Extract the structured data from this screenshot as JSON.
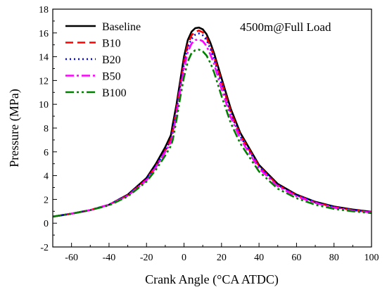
{
  "chart_data": {
    "type": "line",
    "title": "",
    "annotation": "4500m@Full Load",
    "xlabel": "Crank Angle (°CA ATDC)",
    "ylabel": "Pressure (MPa)",
    "xlim": [
      -70,
      100
    ],
    "ylim": [
      -2,
      18
    ],
    "xticks": [
      -60,
      -40,
      -20,
      0,
      20,
      40,
      60,
      80,
      100
    ],
    "yticks": [
      -2,
      0,
      2,
      4,
      6,
      8,
      10,
      12,
      14,
      16,
      18
    ],
    "grid": false,
    "legend_position": "top-left",
    "x": [
      -70,
      -60,
      -50,
      -40,
      -30,
      -20,
      -15,
      -10,
      -7,
      -6,
      -4,
      -2,
      0,
      2,
      4,
      6,
      8,
      10,
      12,
      14,
      16,
      20,
      25,
      30,
      40,
      50,
      60,
      70,
      80,
      90,
      100
    ],
    "series": [
      {
        "name": "Baseline",
        "color": "#000000",
        "dash": "",
        "values": [
          0.55,
          0.8,
          1.1,
          1.55,
          2.4,
          3.8,
          5.0,
          6.4,
          7.4,
          8.3,
          10.0,
          12.0,
          14.0,
          15.4,
          16.1,
          16.4,
          16.45,
          16.3,
          15.9,
          15.2,
          14.3,
          12.2,
          9.6,
          7.6,
          4.9,
          3.3,
          2.4,
          1.8,
          1.4,
          1.15,
          0.95
        ]
      },
      {
        "name": "B10",
        "color": "#ff0000",
        "dash": "11,6",
        "values": [
          0.55,
          0.8,
          1.1,
          1.55,
          2.35,
          3.7,
          4.8,
          6.1,
          7.1,
          7.8,
          9.6,
          11.6,
          13.6,
          15.0,
          15.8,
          16.1,
          16.2,
          16.05,
          15.6,
          14.9,
          14.0,
          11.9,
          9.3,
          7.4,
          4.8,
          3.2,
          2.35,
          1.75,
          1.35,
          1.1,
          0.92
        ]
      },
      {
        "name": "B20",
        "color": "#0000ff",
        "dash": "2,4",
        "values": [
          0.55,
          0.8,
          1.1,
          1.55,
          2.35,
          3.7,
          4.8,
          6.1,
          7.0,
          7.7,
          9.5,
          11.5,
          13.4,
          14.8,
          15.5,
          15.85,
          15.95,
          15.8,
          15.4,
          14.7,
          13.8,
          11.7,
          9.2,
          7.3,
          4.75,
          3.2,
          2.35,
          1.75,
          1.35,
          1.1,
          0.92
        ]
      },
      {
        "name": "B50",
        "color": "#ff00ff",
        "dash": "12,4,3,4",
        "values": [
          0.55,
          0.8,
          1.1,
          1.55,
          2.3,
          3.6,
          4.7,
          6.0,
          6.8,
          7.4,
          9.2,
          11.2,
          13.0,
          14.4,
          15.1,
          15.4,
          15.45,
          15.3,
          14.9,
          14.2,
          13.4,
          11.3,
          8.9,
          7.1,
          4.6,
          3.1,
          2.25,
          1.7,
          1.3,
          1.05,
          0.9
        ]
      },
      {
        "name": "B100",
        "color": "#008000",
        "dash": "12,4,3,4,3,4",
        "values": [
          0.55,
          0.8,
          1.1,
          1.5,
          2.25,
          3.5,
          4.5,
          5.7,
          6.5,
          7.0,
          8.7,
          10.6,
          12.3,
          13.6,
          14.3,
          14.55,
          14.6,
          14.45,
          14.1,
          13.5,
          12.7,
          10.7,
          8.4,
          6.7,
          4.35,
          2.9,
          2.1,
          1.55,
          1.2,
          1.0,
          0.85
        ]
      }
    ]
  }
}
